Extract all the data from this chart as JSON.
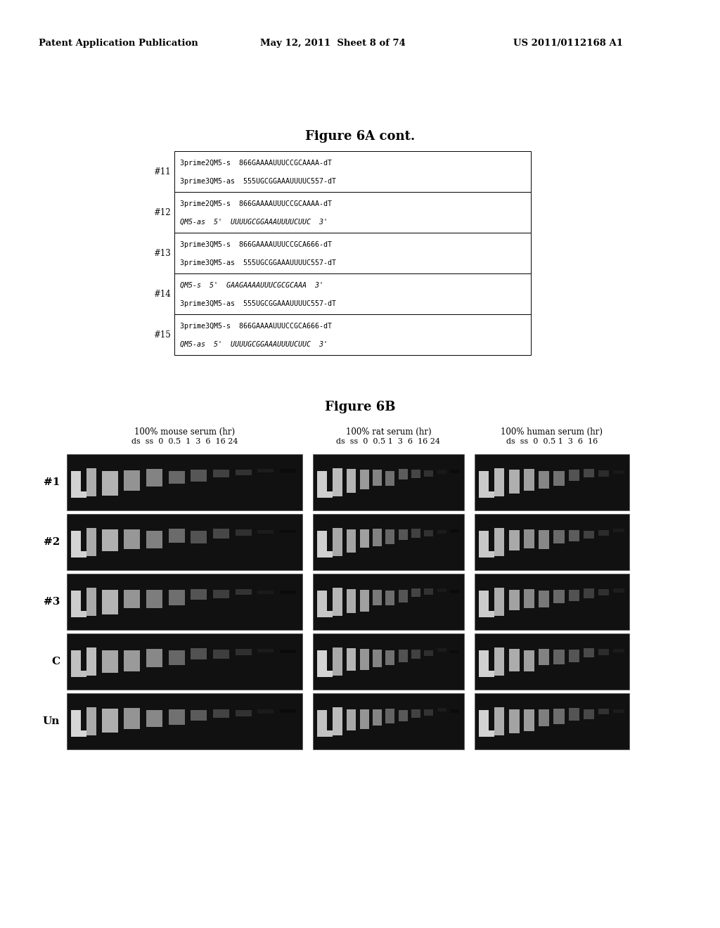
{
  "header_left": "Patent Application Publication",
  "header_center": "May 12, 2011  Sheet 8 of 74",
  "header_right": "US 2011/0112168 A1",
  "fig6a_title": "Figure 6A cont.",
  "fig6b_title": "Figure 6B",
  "table_entries": [
    {
      "id": "#11",
      "lines": [
        "3prime2QM5-s  866GAAAAUUUCCGCAAAA-dT",
        "3prime3QM5-as  555UGCGGAAAUUUUC557-dT"
      ],
      "italic": [
        false,
        false
      ]
    },
    {
      "id": "#12",
      "lines": [
        "3prime2QM5-s  866GAAAAUUUCCGCAAAA-dT",
        "QM5-as  5'  UUUUGCGGAAAUUUUCUUC  3'"
      ],
      "italic": [
        false,
        true
      ]
    },
    {
      "id": "#13",
      "lines": [
        "3prime3QM5-s  866GAAAAUUUCCGCA666-dT",
        "3prime3QM5-as  555UGCGGAAAUUUUC557-dT"
      ],
      "italic": [
        false,
        false
      ]
    },
    {
      "id": "#14",
      "lines": [
        "QM5-s  5'  GAAGAAAAUUUCGCGCAAA  3'",
        "3prime3QM5-as  555UGCGGAAAUUUUC557-dT"
      ],
      "italic": [
        true,
        false
      ]
    },
    {
      "id": "#15",
      "lines": [
        "3prime3QM5-s  866GAAAAUUUCCGCA666-dT",
        "QM5-as  5'  UUUUGCGGAAAUUUUCUUC  3'"
      ],
      "italic": [
        false,
        true
      ]
    }
  ],
  "gel_row_labels": [
    "#1",
    "#2",
    "#3",
    "C",
    "Un"
  ],
  "gel_col_headers": [
    {
      "title": "100% mouse serum (hr)",
      "subtitle": "ds  ss  0  0.5  1  3  6  16 24"
    },
    {
      "title": "100% rat serum (hr)",
      "subtitle": "ds  ss  0  0.5 1  3  6  16 24"
    },
    {
      "title": "100% human serum (hr)",
      "subtitle": "ds  ss  0  0.5 1  3  6  16"
    }
  ],
  "bg_color": "#ffffff",
  "text_color": "#000000",
  "gel_bg": "#111111"
}
